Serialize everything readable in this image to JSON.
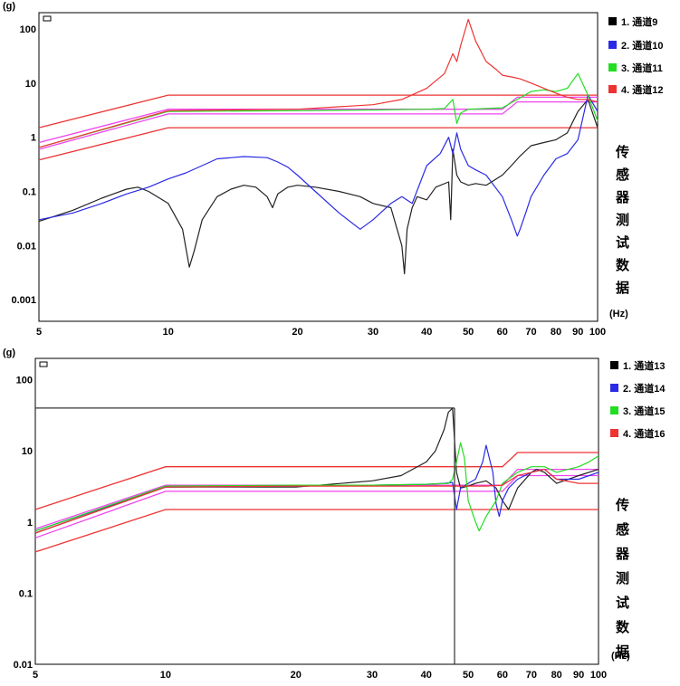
{
  "charts": [
    {
      "y_unit": "(g)",
      "x_unit": "(Hz)",
      "x_tick_labels": [
        "5",
        "10",
        "20",
        "30",
        "40",
        "50",
        "60",
        "70",
        "80",
        "90",
        "100"
      ],
      "y_tick_labels": [
        "100",
        "10",
        "1",
        "0.1",
        "0.01",
        "0.001"
      ],
      "legend": [
        "1. 通道9",
        "2. 通道10",
        "3. 通道11",
        "4. 通道12"
      ],
      "side_label": [
        "传",
        "感",
        "器",
        "测",
        "试",
        "数",
        "据"
      ]
    },
    {
      "y_unit": "(g)",
      "x_unit": "(Hz)",
      "x_tick_labels": [
        "5",
        "10",
        "20",
        "30",
        "40",
        "50",
        "60",
        "70",
        "80",
        "90",
        "100"
      ],
      "y_tick_labels": [
        "100",
        "10",
        "1",
        "0.1",
        "0.01"
      ],
      "legend": [
        "1. 通道13",
        "2. 通道14",
        "3. 通道15",
        "4. 通道16"
      ],
      "side_label": [
        "传",
        "感",
        "器",
        "测",
        "试",
        "数",
        "据"
      ]
    }
  ],
  "colors": {
    "black": "#222222",
    "blue": "#2a2ae6",
    "green": "#22dd22",
    "red": "#ee3333",
    "magenta": "#ee44ee",
    "limit": "#ee3333"
  },
  "chart_data": [
    {
      "type": "line",
      "title": "",
      "xlabel": "(Hz)",
      "ylabel": "(g)",
      "xscale": "log",
      "yscale": "log",
      "xlim": [
        5,
        100
      ],
      "ylim": [
        0.0004,
        200
      ],
      "series": [
        {
          "name": "1. 通道9",
          "color": "#222222",
          "x": [
            5,
            6,
            7,
            8,
            8.5,
            9,
            10,
            10.8,
            11.2,
            11.5,
            12,
            13,
            14,
            15,
            16,
            17,
            17.5,
            18,
            19,
            20,
            22,
            25,
            28,
            30,
            33,
            35,
            35.5,
            36,
            37,
            38,
            40,
            42,
            45,
            45.5,
            46,
            47,
            48,
            50,
            52,
            55,
            60,
            63,
            66,
            70,
            75,
            80,
            85,
            90,
            95,
            100
          ],
          "y": [
            0.028,
            0.045,
            0.075,
            0.11,
            0.12,
            0.1,
            0.06,
            0.02,
            0.004,
            0.008,
            0.03,
            0.08,
            0.11,
            0.13,
            0.12,
            0.08,
            0.05,
            0.09,
            0.12,
            0.13,
            0.12,
            0.1,
            0.08,
            0.06,
            0.05,
            0.01,
            0.003,
            0.02,
            0.05,
            0.08,
            0.07,
            0.12,
            0.15,
            0.03,
            0.6,
            0.2,
            0.15,
            0.13,
            0.14,
            0.13,
            0.2,
            0.3,
            0.45,
            0.7,
            0.8,
            0.9,
            1.2,
            3,
            5,
            1.5
          ]
        },
        {
          "name": "2. 通道10",
          "color": "#2a2ae6",
          "x": [
            5,
            6,
            7,
            8,
            9,
            10,
            11,
            12,
            13,
            15,
            17,
            18,
            19,
            20,
            22,
            25,
            28,
            30,
            33,
            35,
            37,
            40,
            43,
            45,
            46,
            47,
            48,
            50,
            52,
            55,
            60,
            63,
            65,
            66,
            68,
            70,
            75,
            80,
            85,
            90,
            95,
            100
          ],
          "y": [
            0.03,
            0.04,
            0.06,
            0.09,
            0.12,
            0.17,
            0.22,
            0.3,
            0.4,
            0.44,
            0.42,
            0.35,
            0.28,
            0.2,
            0.1,
            0.04,
            0.02,
            0.03,
            0.06,
            0.08,
            0.06,
            0.3,
            0.5,
            1.0,
            0.5,
            1.2,
            0.6,
            0.3,
            0.25,
            0.2,
            0.08,
            0.03,
            0.015,
            0.02,
            0.04,
            0.08,
            0.2,
            0.4,
            0.5,
            0.9,
            6,
            3
          ]
        },
        {
          "name": "3. 通道11",
          "color": "#22dd22",
          "x": [
            5,
            10,
            20,
            30,
            40,
            44,
            46,
            47,
            48,
            50,
            55,
            60,
            65,
            70,
            75,
            80,
            85,
            90,
            95,
            100
          ],
          "y": [
            0.65,
            3,
            3.1,
            3.2,
            3.3,
            3.4,
            5,
            1.8,
            2.8,
            3.3,
            3.4,
            3.5,
            5,
            7,
            7.5,
            7,
            8,
            15,
            6,
            2
          ]
        },
        {
          "name": "4. 通道12",
          "color": "#ee3333",
          "x": [
            5,
            10,
            20,
            30,
            35,
            40,
            44,
            46,
            47,
            48,
            50,
            52,
            55,
            58,
            60,
            63,
            66,
            70,
            75,
            80,
            85,
            90,
            95,
            100
          ],
          "y": [
            0.65,
            3.1,
            3.3,
            4,
            5,
            8,
            15,
            35,
            25,
            50,
            150,
            60,
            25,
            18,
            14,
            13,
            12,
            10,
            8,
            6.5,
            5.5,
            5,
            5,
            4.5
          ]
        }
      ],
      "reference_lines": [
        {
          "name": "upper abort",
          "color": "#ee3333",
          "x": [
            5,
            10,
            60,
            65,
            100
          ],
          "y": [
            1.5,
            6,
            6,
            6,
            6
          ]
        },
        {
          "name": "upper alarm",
          "color": "#ee44ee",
          "x": [
            5,
            10,
            60,
            65,
            100
          ],
          "y": [
            0.8,
            3.3,
            3.3,
            5.5,
            5.5
          ]
        },
        {
          "name": "lower alarm",
          "color": "#ee44ee",
          "x": [
            5,
            10,
            60,
            65,
            100
          ],
          "y": [
            0.6,
            2.7,
            2.7,
            4.5,
            4.5
          ]
        },
        {
          "name": "lower abort",
          "color": "#ee3333",
          "x": [
            5,
            10,
            60,
            65,
            100
          ],
          "y": [
            0.38,
            1.5,
            1.5,
            1.5,
            1.5
          ]
        }
      ]
    },
    {
      "type": "line",
      "title": "",
      "xlabel": "(Hz)",
      "ylabel": "(g)",
      "xscale": "log",
      "yscale": "log",
      "xlim": [
        5,
        100
      ],
      "ylim": [
        0.01,
        200
      ],
      "series": [
        {
          "name": "1. 通道13",
          "color": "#222222",
          "x": [
            5,
            10,
            20,
            30,
            35,
            40,
            42,
            44,
            45,
            46,
            47,
            48,
            50,
            52,
            55,
            58,
            60,
            62,
            65,
            70,
            72,
            75,
            80,
            90,
            100
          ],
          "y": [
            0.7,
            3.1,
            3.1,
            3.8,
            4.5,
            7,
            10,
            20,
            35,
            40,
            5,
            3,
            3.2,
            3.5,
            3.8,
            3,
            2,
            1.5,
            3,
            5,
            5.5,
            5,
            3.5,
            4.5,
            5.5
          ]
        },
        {
          "name": "2. 通道14",
          "color": "#2a2ae6",
          "x": [
            5,
            10,
            20,
            30,
            40,
            44,
            46,
            47,
            48,
            50,
            52,
            54,
            55,
            57,
            58,
            59,
            60,
            62,
            65,
            70,
            75,
            80,
            90,
            100
          ],
          "y": [
            0.75,
            3.1,
            3.2,
            3.3,
            3.4,
            3.5,
            3.6,
            1.5,
            3,
            3.5,
            4,
            7,
            12,
            5,
            1.8,
            1.2,
            2,
            3,
            4,
            5,
            5.5,
            4,
            4,
            5
          ]
        },
        {
          "name": "3. 通道15",
          "color": "#22dd22",
          "x": [
            5,
            10,
            20,
            30,
            40,
            45,
            46,
            47,
            48,
            49,
            50,
            52,
            53,
            55,
            58,
            60,
            65,
            70,
            75,
            80,
            85,
            90,
            95,
            100
          ],
          "y": [
            0.75,
            3.2,
            3.3,
            3.3,
            3.4,
            3.5,
            4,
            7,
            13,
            8,
            2,
            1,
            0.75,
            1.2,
            2,
            3.5,
            5,
            6,
            6,
            5,
            5.5,
            6,
            7,
            8.5
          ]
        },
        {
          "name": "4. 通道16",
          "color": "#ee3333",
          "x": [
            5,
            10,
            20,
            30,
            40,
            46,
            47,
            50,
            55,
            60,
            65,
            70,
            75,
            80,
            90,
            100
          ],
          "y": [
            0.7,
            3.1,
            3.2,
            3.2,
            3.2,
            3.2,
            3.2,
            3.2,
            3.2,
            3.3,
            4.5,
            5,
            5.5,
            4,
            3.5,
            3.5
          ]
        }
      ],
      "reference_lines": [
        {
          "name": "upper abort",
          "color": "#ee3333",
          "x": [
            5,
            10,
            60,
            65,
            100
          ],
          "y": [
            1.5,
            6,
            6,
            9.5,
            9.5
          ]
        },
        {
          "name": "upper alarm",
          "color": "#ee44ee",
          "x": [
            5,
            10,
            60,
            65,
            100
          ],
          "y": [
            0.8,
            3.3,
            3.3,
            5.5,
            5.5
          ]
        },
        {
          "name": "lower alarm",
          "color": "#ee44ee",
          "x": [
            5,
            10,
            60,
            65,
            100
          ],
          "y": [
            0.6,
            2.7,
            2.7,
            4.5,
            4.5
          ]
        },
        {
          "name": "lower abort",
          "color": "#ee3333",
          "x": [
            5,
            10,
            60,
            65,
            100
          ],
          "y": [
            0.38,
            1.5,
            1.5,
            1.5,
            1.5
          ]
        }
      ],
      "cursor": {
        "x": 46.5,
        "y": 40
      }
    }
  ]
}
